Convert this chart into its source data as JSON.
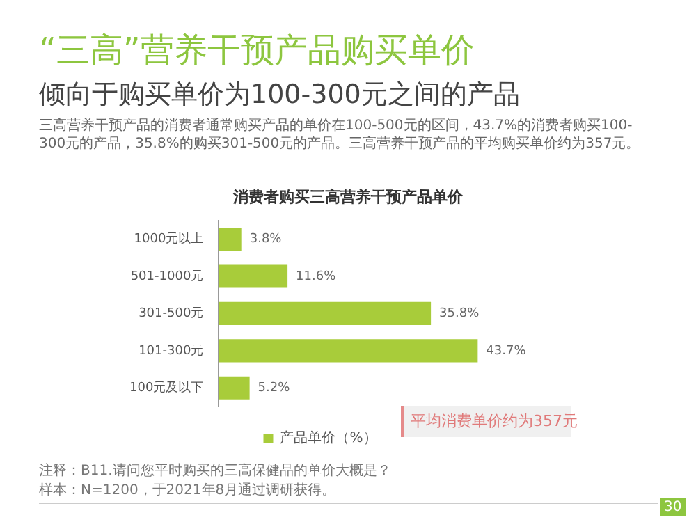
{
  "chart_data": {
    "type": "bar",
    "orientation": "horizontal",
    "title": "“三高”营养干预产品购买单价",
    "subtitle": "倾向于购买单价为100-300元之间的产品",
    "annotations": [
      "三高营养干预产品的消费者通常购买产品的单价在100-500元的区间，43.7%的消费者购买100-300元的产品，35.8%的购买301-500元的产品。三高营养干预产品的平均购买单价约为357元。",
      "消费者购买三高营养干预产品单价",
      "平均消费单价约为357元",
      "注释：B11.请问您平时购买的三高保健品的单价大概是？",
      "样本：N=1200，于2021年8月通过调研获得。",
      "30"
    ],
    "categories": [
      "1000元以上",
      "501-1000元",
      "301-500元",
      "101-300元",
      "100元及以下"
    ],
    "series": [
      {
        "name": "产品单价（%）",
        "color": "#a8cc3a",
        "values": [
          3.8,
          11.6,
          35.8,
          43.7,
          5.2
        ],
        "value_labels": [
          "3.8%",
          "11.6%",
          "35.8%",
          "43.7%",
          "5.2%"
        ]
      }
    ],
    "legend": "bottom",
    "tick_labels": "y",
    "grid": false
  }
}
